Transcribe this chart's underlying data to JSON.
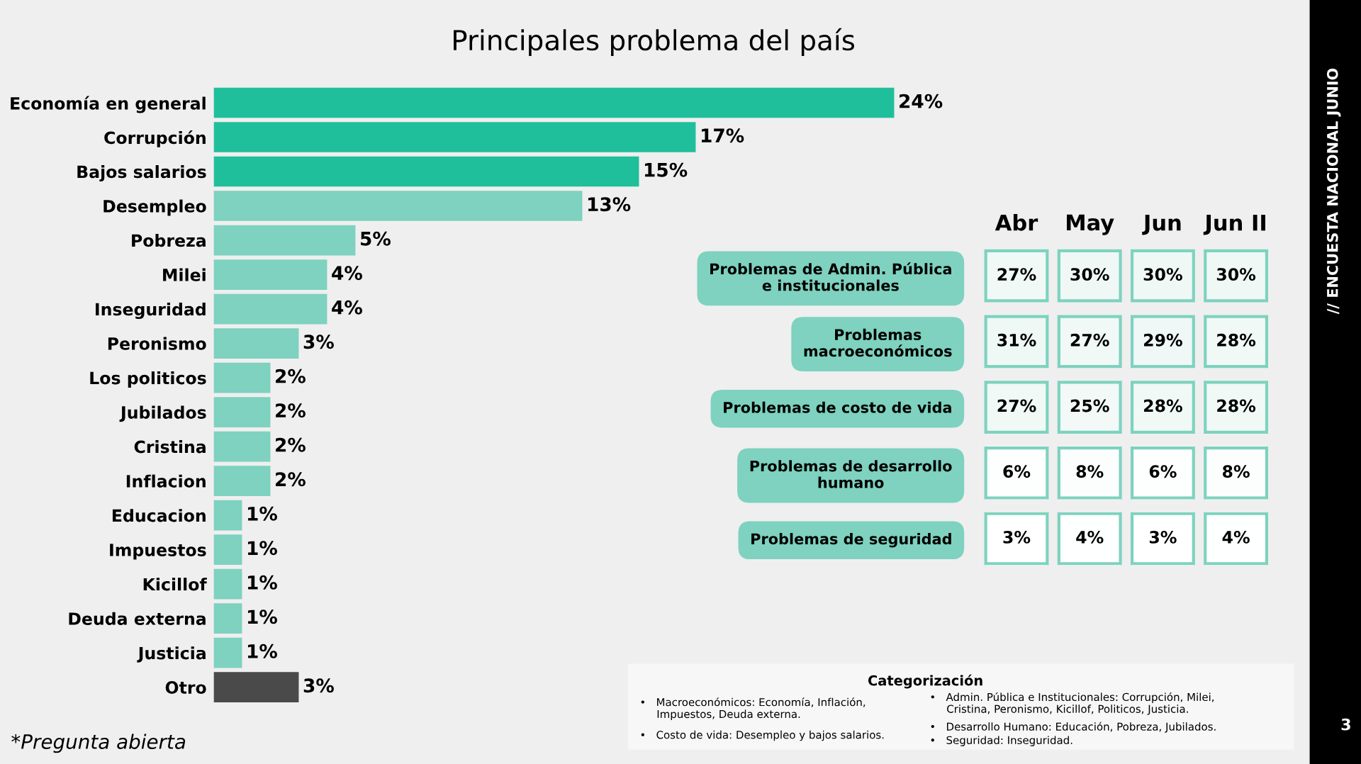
{
  "chart_data": [
    {
      "type": "bar",
      "orientation": "horizontal",
      "title": "Principales problema del país",
      "categories": [
        "Economía en general",
        "Corrupción",
        "Bajos salarios",
        "Desempleo",
        "Pobreza",
        "Milei",
        "Inseguridad",
        "Peronismo",
        "Los politicos",
        "Jubilados",
        "Cristina",
        "Inflacion",
        "Educacion",
        "Impuestos",
        "Kicillof",
        "Deuda externa",
        "Justicia",
        "Otro"
      ],
      "values": [
        24,
        17,
        15,
        13,
        5,
        4,
        4,
        3,
        2,
        2,
        2,
        2,
        1,
        1,
        1,
        1,
        1,
        3
      ],
      "value_labels": [
        "24%",
        "17%",
        "15%",
        "13%",
        "5%",
        "4%",
        "4%",
        "3%",
        "2%",
        "2%",
        "2%",
        "2%",
        "1%",
        "1%",
        "1%",
        "1%",
        "1%",
        "3%"
      ],
      "colors": [
        "#20bf9b",
        "#20bf9b",
        "#20bf9b",
        "#7ed2bf",
        "#7ed2bf",
        "#7ed2bf",
        "#7ed2bf",
        "#7ed2bf",
        "#7ed2bf",
        "#7ed2bf",
        "#7ed2bf",
        "#7ed2bf",
        "#7ed2bf",
        "#7ed2bf",
        "#7ed2bf",
        "#7ed2bf",
        "#7ed2bf",
        "#4a4a4a"
      ],
      "tick_labels": "y",
      "annotations": [
        "*Pregunta abierta",
        "Categorización",
        "•   Macroeconómicos: Economía, Inflación,\n     Impuestos, Deuda externa.",
        "•   Costo de vida: Desempleo y bajos salarios.",
        "•   Admin. Pública e Institucionales: Corrupción, Milei,\n     Cristina, Peronismo, Kicillof, Politicos, Justicia.",
        "•   Desarrollo Humano: Educación, Pobreza, Jubilados.",
        "•   Seguridad: Inseguridad.",
        "// ENCUESTA NACIONAL JUNIO",
        "3"
      ]
    },
    {
      "type": "heatmap",
      "categories": [
        "Abr",
        "May",
        "Jun",
        "Jun II"
      ],
      "y_categories": [
        "Problemas de Admin. Pública\ne institucionales",
        "Problemas\nmacroeconómicos",
        "Problemas de costo de vida",
        "Problemas de desarrollo\nhumano",
        "Problemas de seguridad"
      ],
      "cells": [
        [
          27,
          30,
          30,
          30
        ],
        [
          31,
          27,
          29,
          28
        ],
        [
          27,
          25,
          28,
          28
        ],
        [
          6,
          8,
          6,
          8
        ],
        [
          3,
          4,
          3,
          4
        ]
      ],
      "cell_labels": [
        [
          "27%",
          "30%",
          "30%",
          "30%"
        ],
        [
          "31%",
          "27%",
          "29%",
          "28%"
        ],
        [
          "27%",
          "25%",
          "28%",
          "28%"
        ],
        [
          "6%",
          "8%",
          "6%",
          "8%"
        ],
        [
          "3%",
          "4%",
          "3%",
          "4%"
        ]
      ],
      "color": "#ffffff"
    }
  ]
}
